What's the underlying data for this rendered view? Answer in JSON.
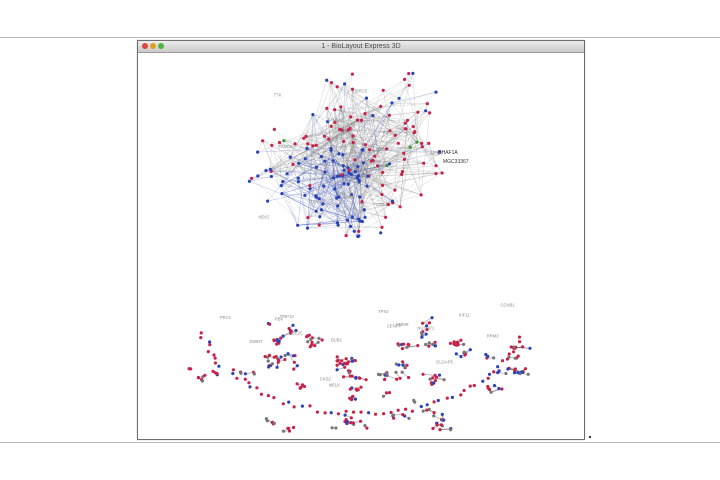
{
  "window": {
    "title": "1 - BioLayout Express 3D",
    "close_icon": "close-button-icon",
    "minimize_icon": "minimize-button-icon",
    "zoom_icon": "zoom-button-icon"
  },
  "graph": {
    "colors": {
      "edge": "#555555",
      "node_red": "#c8224a",
      "node_blue": "#2a44b8",
      "node_green": "#3a9a3a",
      "label": "#8a8a8a"
    },
    "highlighted_labels": [
      "DHAF1A",
      "MGC33367"
    ],
    "node_labels": [
      "DHAF1A",
      "MGC33367",
      "PSMD2",
      "AURKA",
      "BIRC5",
      "CDC20",
      "TOP2A",
      "MCM7",
      "FAM64A",
      "KIF2C",
      "TTK",
      "CDK1",
      "PLK1",
      "NEK2",
      "RRM2",
      "BUB1",
      "CCNB1",
      "HMMR",
      "PRC1",
      "TPX2",
      "KIF11",
      "CENPF",
      "NUSAP1",
      "DLGAP5",
      "MELK",
      "UBE2C",
      "PBK",
      "TRIP13",
      "ZWINT",
      "CKS2"
    ]
  }
}
